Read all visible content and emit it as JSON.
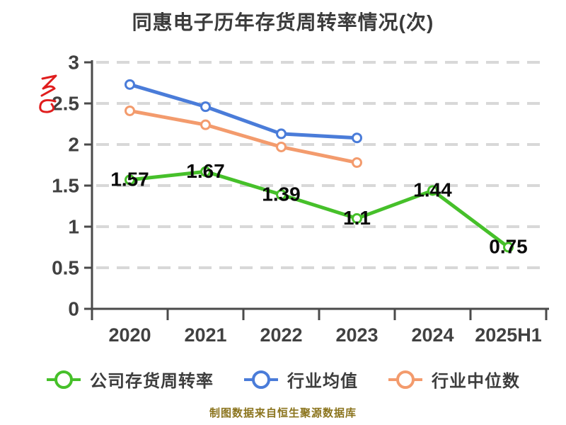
{
  "title": "同惠电子历年存货周转率情况(次)",
  "footer": "制图数据来自恒生聚源数据库",
  "watermark": {
    "name": "red-scribble-watermark",
    "color": "#e01d1d"
  },
  "colors": {
    "title": "#3b3b3b",
    "axis": "#4a4a4a",
    "grid": "#d8d8d8",
    "tick_label": "#414141",
    "data_label": "#0a0a0a",
    "legend_label": "#3d3d3d",
    "footer": "#8b741d",
    "marker_fill": "#ffffff"
  },
  "chart_data": {
    "type": "line",
    "title": "同惠电子历年存货周转率情况(次)",
    "categories": [
      "2020",
      "2021",
      "2022",
      "2023",
      "2024",
      "2025H1"
    ],
    "series": [
      {
        "name": "公司存货周转率",
        "color": "#46c02a",
        "values": [
          1.57,
          1.67,
          1.39,
          1.1,
          1.44,
          0.75
        ],
        "labels": [
          "1.57",
          "1.67",
          "1.39",
          "1.1",
          "1.44",
          "0.75"
        ],
        "show_labels": true
      },
      {
        "name": "行业均值",
        "color": "#4a7cd9",
        "values": [
          2.73,
          2.46,
          2.13,
          2.08,
          null,
          null
        ],
        "labels": [],
        "show_labels": false
      },
      {
        "name": "行业中位数",
        "color": "#f39b6d",
        "values": [
          2.41,
          2.24,
          1.97,
          1.78,
          null,
          null
        ],
        "labels": [],
        "show_labels": false
      }
    ],
    "xlabel": "",
    "ylabel": "",
    "ylim": [
      0,
      3
    ],
    "yticks": [
      "0",
      "0.5",
      "1",
      "1.5",
      "2",
      "2.5",
      "3"
    ],
    "grid": "dashed horizontal",
    "legend_position": "bottom"
  }
}
